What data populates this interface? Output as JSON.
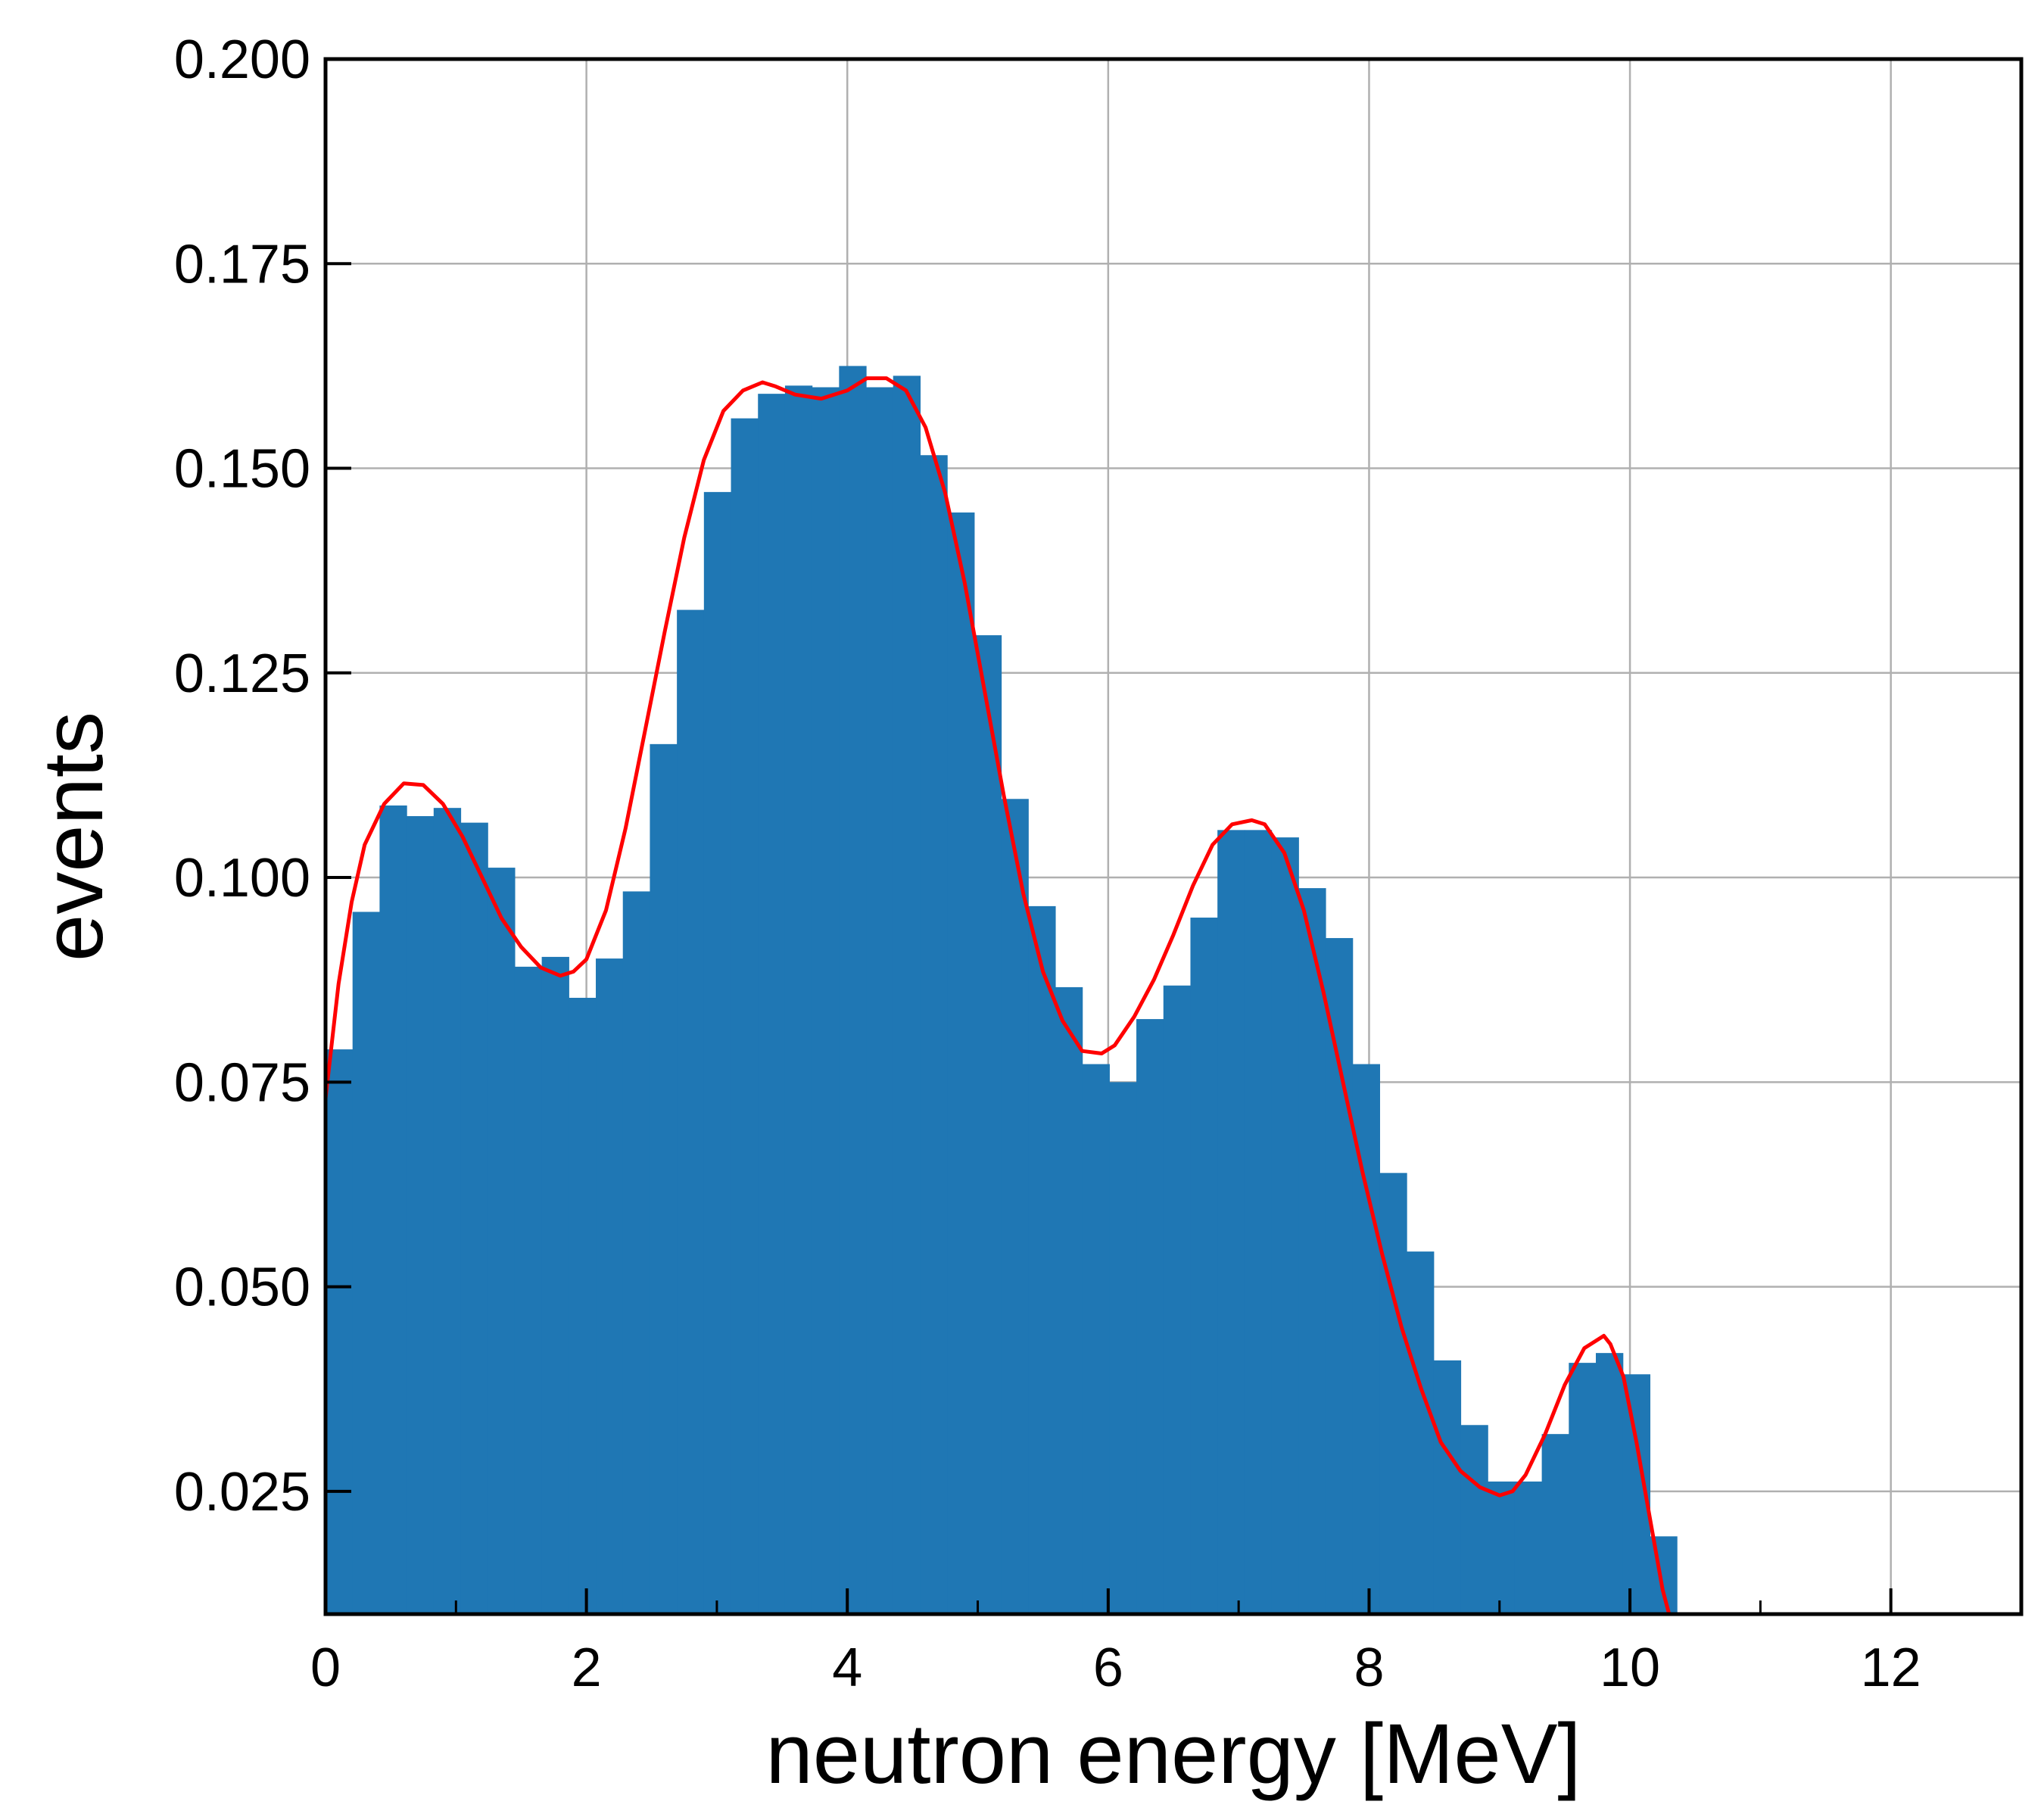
{
  "chart_data": {
    "type": "bar",
    "title": "",
    "xlabel": "neutron energy [MeV]",
    "ylabel": "events",
    "xlim": [
      0,
      13
    ],
    "ylim": [
      0.01,
      0.2
    ],
    "grid": true,
    "x_ticks": [
      "0",
      "2",
      "4",
      "6",
      "8",
      "10",
      "12"
    ],
    "y_ticks": [
      "0.025",
      "0.050",
      "0.075",
      "0.100",
      "0.125",
      "0.150",
      "0.175",
      "0.200"
    ],
    "bin_width": 0.2072,
    "bin_start": 0,
    "values": [
      0.079,
      0.0958,
      0.1088,
      0.1075,
      0.1085,
      0.1067,
      0.1012,
      0.0891,
      0.0903,
      0.0853,
      0.0901,
      0.0983,
      0.1163,
      0.1327,
      0.1471,
      0.1561,
      0.1591,
      0.1601,
      0.1599,
      0.1625,
      0.1599,
      0.1613,
      0.1516,
      0.1446,
      0.1296,
      0.1096,
      0.0965,
      0.0866,
      0.0772,
      0.075,
      0.0827,
      0.0868,
      0.0951,
      0.1058,
      0.1058,
      0.1049,
      0.0987,
      0.0926,
      0.0772,
      0.0639,
      0.0543,
      0.041,
      0.0331,
      0.0262,
      0.0262,
      0.032,
      0.0407,
      0.0419,
      0.0393,
      0.0195
    ],
    "bar_color": "#1f77b4",
    "fit_curve": {
      "color": "#ff0000",
      "x": [
        0.0,
        0.1,
        0.2,
        0.3,
        0.45,
        0.6,
        0.75,
        0.9,
        1.05,
        1.2,
        1.35,
        1.5,
        1.65,
        1.8,
        1.9,
        2.0,
        2.15,
        2.3,
        2.45,
        2.6,
        2.75,
        2.9,
        3.05,
        3.2,
        3.35,
        3.45,
        3.6,
        3.8,
        4.0,
        4.15,
        4.3,
        4.45,
        4.6,
        4.75,
        4.9,
        5.05,
        5.2,
        5.35,
        5.5,
        5.65,
        5.8,
        5.95,
        6.05,
        6.2,
        6.35,
        6.5,
        6.65,
        6.8,
        6.95,
        7.1,
        7.2,
        7.35,
        7.5,
        7.65,
        7.8,
        7.95,
        8.1,
        8.25,
        8.4,
        8.55,
        8.7,
        8.85,
        9.0,
        9.1,
        9.2,
        9.35,
        9.5,
        9.65,
        9.8,
        9.85,
        9.95,
        10.05,
        10.15,
        10.25,
        10.3
      ],
      "y": [
        0.073,
        0.087,
        0.097,
        0.104,
        0.109,
        0.1115,
        0.1113,
        0.109,
        0.105,
        0.1,
        0.095,
        0.0915,
        0.089,
        0.088,
        0.0885,
        0.09,
        0.096,
        0.106,
        0.118,
        0.13,
        0.1415,
        0.151,
        0.157,
        0.1595,
        0.1605,
        0.16,
        0.159,
        0.1585,
        0.1595,
        0.161,
        0.161,
        0.1595,
        0.155,
        0.147,
        0.136,
        0.123,
        0.11,
        0.098,
        0.0885,
        0.0825,
        0.0788,
        0.0785,
        0.0795,
        0.083,
        0.0875,
        0.093,
        0.099,
        0.104,
        0.1065,
        0.107,
        0.1065,
        0.103,
        0.096,
        0.086,
        0.075,
        0.064,
        0.054,
        0.045,
        0.0375,
        0.031,
        0.0275,
        0.0255,
        0.0245,
        0.025,
        0.027,
        0.032,
        0.038,
        0.0425,
        0.044,
        0.043,
        0.039,
        0.031,
        0.022,
        0.013,
        0.01
      ]
    }
  }
}
